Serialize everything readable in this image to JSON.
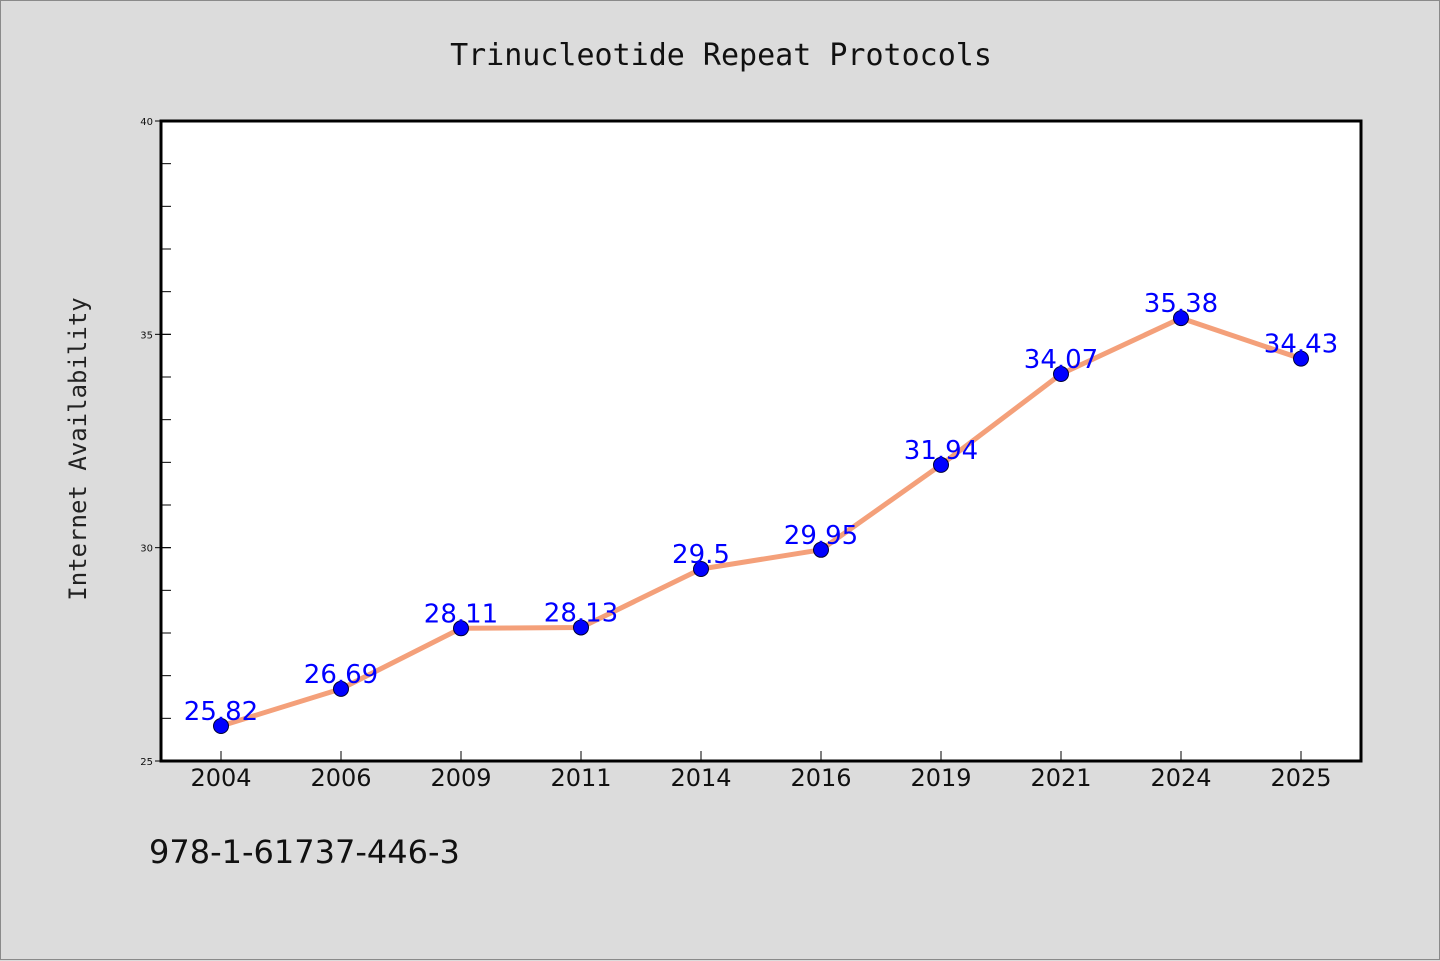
{
  "chart_data": {
    "type": "line",
    "title": "Trinucleotide Repeat Protocols",
    "xlabel": "",
    "ylabel": "Internet Availability",
    "categories": [
      "2004",
      "2006",
      "2009",
      "2011",
      "2014",
      "2016",
      "2019",
      "2021",
      "2024",
      "2025"
    ],
    "series": [
      {
        "values": [
          25.82,
          26.69,
          28.11,
          28.13,
          29.5,
          29.95,
          31.94,
          34.07,
          35.38,
          34.43
        ],
        "data_labels": [
          "25.82",
          "26.69",
          "28.11",
          "28.13",
          "29.5",
          "29.95",
          "31.94",
          "34.07",
          "35.38",
          "34.43"
        ],
        "line_color": "#f4a07a",
        "marker_color": "#0000ff"
      }
    ],
    "ylim": [
      25,
      40
    ],
    "y_ticks": [
      25,
      30,
      35,
      40
    ],
    "y_tick_labels": [
      "25",
      "30",
      "35",
      "40"
    ],
    "y_minor_step": 1,
    "grid": false,
    "legend": "none",
    "colors": {
      "background": "#dcdcdc",
      "plot_background": "#ffffff",
      "line": "#f4a07a",
      "marker": "#0000ff",
      "data_label": "#0000ff"
    }
  },
  "footer_text": "978-1-61737-446-3"
}
